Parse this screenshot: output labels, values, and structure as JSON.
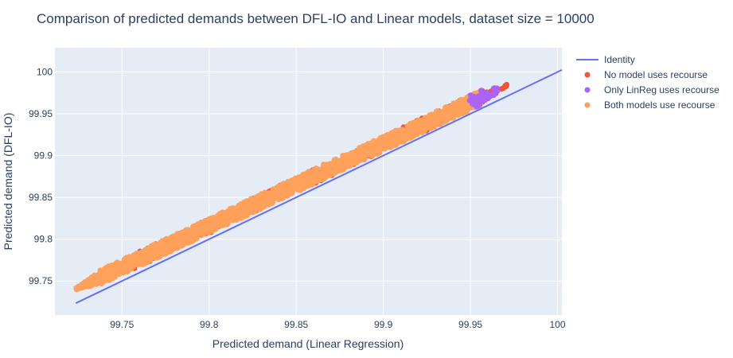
{
  "colors": {
    "plot_bg": "#E5ECF6",
    "grid": "#FFFFFF",
    "identity": "#636EFA",
    "no_recourse": "#EF553B",
    "only_linreg": "#AB63FA",
    "both": "#FFA15A"
  },
  "chart_data": {
    "type": "scatter",
    "title": "Comparison of predicted demands between DFL-IO and Linear models, dataset size = 10000",
    "xlabel": "Predicted demand (Linear Regression)",
    "ylabel": "Predicted demand (DFL-IO)",
    "xlim": [
      99.7115,
      100.0025
    ],
    "ylim": [
      99.7093,
      100.029
    ],
    "x_ticks": [
      "99.75",
      "99.8",
      "99.85",
      "99.9",
      "99.95",
      "100"
    ],
    "x_tick_values": [
      99.75,
      99.8,
      99.85,
      99.9,
      99.95,
      100.0
    ],
    "y_ticks": [
      "99.75",
      "99.8",
      "99.85",
      "99.9",
      "99.95",
      "100"
    ],
    "y_tick_values": [
      99.75,
      99.8,
      99.85,
      99.9,
      99.95,
      100.0
    ],
    "grid": true,
    "legend_placement": "top-right",
    "identity_line": {
      "name": "Identity",
      "x": [
        99.7235,
        100.0025
      ],
      "y": [
        99.7235,
        100.0025
      ]
    },
    "scatter_band": {
      "x_range": [
        99.7235,
        99.971
      ],
      "center_intercept": 1.6875,
      "center_slope": 0.98325,
      "half_width": 0.0088,
      "end_points": {
        "start": [
          99.7235,
          99.767
        ],
        "end": [
          99.971,
          100.0106
        ]
      }
    },
    "series": [
      {
        "name": "No model uses recourse",
        "points": 360,
        "x_range": [
          99.7235,
          99.971
        ]
      },
      {
        "name": "Only LinReg uses recourse",
        "points": 40,
        "x_range": [
          99.9475,
          99.966
        ]
      },
      {
        "name": "Both models use recourse",
        "points": 2100,
        "x_range": [
          99.7235,
          99.956
        ]
      }
    ]
  }
}
